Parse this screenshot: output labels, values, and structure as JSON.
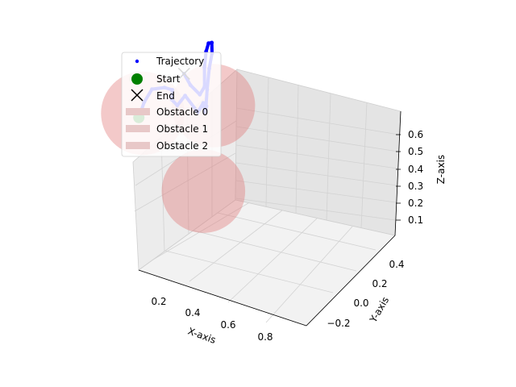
{
  "chart_data": {
    "type": "scatter",
    "projection": "3d",
    "title": "",
    "xlabel": "X-axis",
    "ylabel": "Y-axis",
    "zlabel": "Z-axis",
    "xlim": [
      0.1,
      0.95
    ],
    "ylim": [
      -0.3,
      0.5
    ],
    "zlim": [
      0.05,
      0.68
    ],
    "xticks": [
      "0.2",
      "0.4",
      "0.6",
      "0.8"
    ],
    "yticks": [
      "−0.2",
      "0.0",
      "0.2",
      "0.4"
    ],
    "zticks": [
      "0.1",
      "0.2",
      "0.3",
      "0.4",
      "0.5",
      "0.6"
    ],
    "grid": true,
    "legend_position": "upper-left",
    "legend": [
      "Trajectory",
      "Start",
      "End",
      "Obstacle 0",
      "Obstacle 1",
      "Obstacle 2"
    ],
    "colors": {
      "trajectory": "#0000ff",
      "start": "#008000",
      "end": "#000000",
      "obstacle": "#e07070",
      "pane": "#ebebeb",
      "grid": "#d0d0d0"
    },
    "series": [
      {
        "name": "Trajectory",
        "points": [
          [
            0.3,
            0.15,
            0.26
          ],
          [
            0.34,
            0.18,
            0.3
          ],
          [
            0.38,
            0.2,
            0.34
          ],
          [
            0.42,
            0.2,
            0.36
          ],
          [
            0.46,
            0.22,
            0.35
          ],
          [
            0.48,
            0.25,
            0.3
          ],
          [
            0.52,
            0.28,
            0.27
          ],
          [
            0.56,
            0.3,
            0.3
          ],
          [
            0.6,
            0.3,
            0.26
          ],
          [
            0.64,
            0.33,
            0.28
          ],
          [
            0.66,
            0.35,
            0.24
          ],
          [
            0.68,
            0.37,
            0.25
          ],
          [
            0.7,
            0.4,
            0.22
          ],
          [
            0.69,
            0.38,
            0.3
          ],
          [
            0.66,
            0.33,
            0.4
          ],
          [
            0.61,
            0.25,
            0.5
          ],
          [
            0.55,
            0.17,
            0.58
          ],
          [
            0.48,
            0.09,
            0.62
          ],
          [
            0.42,
            0.02,
            0.63
          ],
          [
            0.37,
            -0.04,
            0.61
          ],
          [
            0.34,
            -0.08,
            0.57
          ],
          [
            0.31,
            -0.1,
            0.55
          ],
          [
            0.28,
            -0.1,
            0.57
          ],
          [
            0.26,
            -0.1,
            0.6
          ]
        ]
      },
      {
        "name": "Start",
        "point": [
          0.3,
          0.15,
          0.26
        ]
      },
      {
        "name": "End",
        "point": [
          0.26,
          -0.1,
          0.6
        ]
      },
      {
        "name": "Obstacle 0",
        "center": [
          0.43,
          0.05,
          0.15
        ],
        "radius": 0.15
      },
      {
        "name": "Obstacle 1",
        "center": [
          0.35,
          0.2,
          0.25
        ],
        "radius": 0.15
      },
      {
        "name": "Obstacle 2",
        "center": [
          0.65,
          0.3,
          0.3
        ],
        "radius": 0.15
      }
    ]
  }
}
